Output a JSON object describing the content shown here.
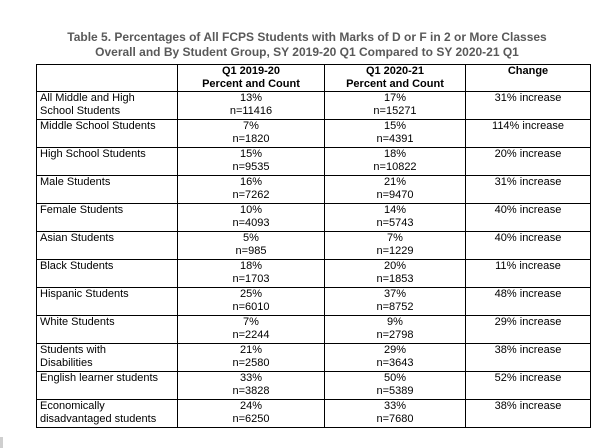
{
  "caption": {
    "line1": "Table 5. Percentages of All FCPS Students with Marks of D or F in 2 or More Classes",
    "line2": "Overall and By Student Group, SY 2019-20 Q1 Compared to SY 2020-21 Q1"
  },
  "header": {
    "group": "",
    "col1_line1": "Q1 2019-20",
    "col1_line2": "Percent and Count",
    "col2_line1": "Q1 2020-21",
    "col2_line2": "Percent and Count",
    "change": "Change"
  },
  "rows": [
    {
      "group_line1": "All Middle and High",
      "group_line2": "School Students",
      "pct1": "13%",
      "n1": "n=11416",
      "pct2": "17%",
      "n2": "n=15271",
      "change": "31% increase"
    },
    {
      "group_line1": "Middle School Students",
      "group_line2": "",
      "pct1": "7%",
      "n1": "n=1820",
      "pct2": "15%",
      "n2": "n=4391",
      "change": "114% increase"
    },
    {
      "group_line1": "High School Students",
      "group_line2": "",
      "pct1": "15%",
      "n1": "n=9535",
      "pct2": "18%",
      "n2": "n=10822",
      "change": "20% increase"
    },
    {
      "group_line1": "Male Students",
      "group_line2": "",
      "pct1": "16%",
      "n1": "n=7262",
      "pct2": "21%",
      "n2": "n=9470",
      "change": "31% increase"
    },
    {
      "group_line1": "Female Students",
      "group_line2": "",
      "pct1": "10%",
      "n1": "n=4093",
      "pct2": "14%",
      "n2": "n=5743",
      "change": "40% increase"
    },
    {
      "group_line1": "Asian Students",
      "group_line2": "",
      "pct1": "5%",
      "n1": "n=985",
      "pct2": "7%",
      "n2": "n=1229",
      "change": "40% increase"
    },
    {
      "group_line1": "Black Students",
      "group_line2": "",
      "pct1": "18%",
      "n1": "n=1703",
      "pct2": "20%",
      "n2": "n=1853",
      "change": "11% increase"
    },
    {
      "group_line1": "Hispanic Students",
      "group_line2": "",
      "pct1": "25%",
      "n1": "n=6010",
      "pct2": "37%",
      "n2": "n=8752",
      "change": "48% increase"
    },
    {
      "group_line1": "White Students",
      "group_line2": "",
      "pct1": "7%",
      "n1": "n=2244",
      "pct2": "9%",
      "n2": "n=2798",
      "change": "29% increase"
    },
    {
      "group_line1": "Students with",
      "group_line2": "Disabilities",
      "pct1": "21%",
      "n1": "n=2580",
      "pct2": "29%",
      "n2": "n=3643",
      "change": "38% increase"
    },
    {
      "group_line1": "English learner students",
      "group_line2": "",
      "pct1": "33%",
      "n1": "n=3828",
      "pct2": "50%",
      "n2": "n=5389",
      "change": "52% increase"
    },
    {
      "group_line1": "Economically",
      "group_line2": "disadvantaged students",
      "pct1": "24%",
      "n1": "n=6250",
      "pct2": "33%",
      "n2": "n=7680",
      "change": "38% increase"
    }
  ]
}
